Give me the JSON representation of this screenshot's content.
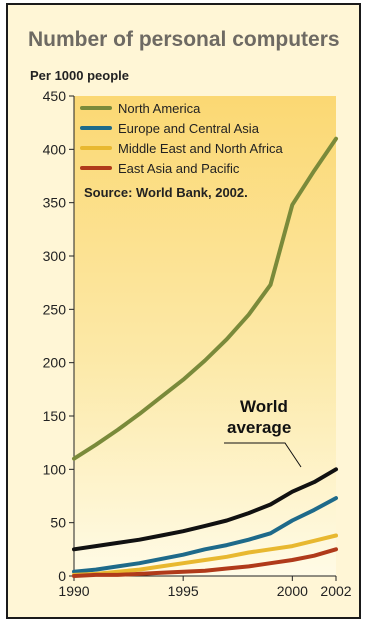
{
  "chart_data": {
    "type": "line",
    "title": "Number of personal computers",
    "ylabel": "Per 1000 people",
    "xlabel": "",
    "ylim": [
      0,
      450
    ],
    "yticks": [
      0,
      50,
      100,
      150,
      200,
      250,
      300,
      350,
      400,
      450
    ],
    "xlim": [
      1990,
      2002
    ],
    "xticks": [
      1990,
      1995,
      2000,
      2002
    ],
    "source": "Source: World Bank, 2002.",
    "legend_position": "top-left",
    "grid": false,
    "annotation": {
      "line1": "World",
      "line2": "average"
    },
    "x": [
      1990,
      1991,
      1992,
      1993,
      1994,
      1995,
      1996,
      1997,
      1998,
      1999,
      2000,
      2001,
      2002
    ],
    "series": [
      {
        "name": "North America",
        "color": "#7a8a3a",
        "values": [
          110,
          123,
          137,
          152,
          168,
          184,
          202,
          222,
          245,
          273,
          348,
          380,
          410
        ]
      },
      {
        "name": "Europe and Central Asia",
        "color": "#1e6a8a",
        "values": [
          4,
          6,
          9,
          12,
          16,
          20,
          25,
          29,
          34,
          40,
          52,
          62,
          73
        ]
      },
      {
        "name": "Middle East and North Africa",
        "color": "#e8b830",
        "values": [
          1,
          2,
          4,
          6,
          9,
          12,
          15,
          18,
          22,
          25,
          28,
          33,
          38
        ]
      },
      {
        "name": "East Asia and Pacific",
        "color": "#b03a1a",
        "values": [
          0,
          1,
          1,
          2,
          3,
          4,
          5,
          7,
          9,
          12,
          15,
          19,
          25
        ]
      },
      {
        "name": "",
        "color": "#111111",
        "values": [
          25,
          28,
          31,
          34,
          38,
          42,
          47,
          52,
          59,
          67,
          79,
          88,
          100
        ]
      }
    ]
  }
}
